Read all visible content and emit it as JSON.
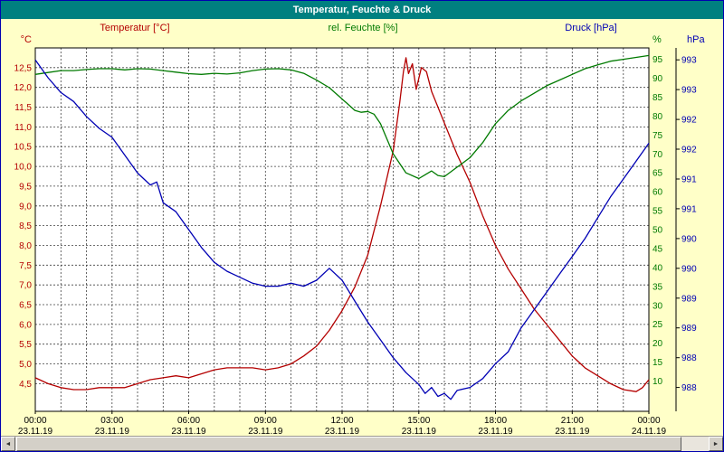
{
  "window": {
    "title": "Temperatur, Feuchte & Druck"
  },
  "scrollbar": {
    "left_arrow": "◄",
    "right_arrow": "►"
  },
  "chart_data": {
    "type": "line",
    "title": "Temperatur, Feuchte & Druck",
    "x_range": [
      0,
      24
    ],
    "grid": {
      "x_step_hours": 1,
      "vertical_on": true,
      "horizontal_on": true
    },
    "x_ticks": [
      {
        "h": 0,
        "time": "00:00",
        "date": "23.11.19"
      },
      {
        "h": 3,
        "time": "03:00",
        "date": "23.11.19"
      },
      {
        "h": 6,
        "time": "06:00",
        "date": "23.11.19"
      },
      {
        "h": 9,
        "time": "09:00",
        "date": "23.11.19"
      },
      {
        "h": 12,
        "time": "12:00",
        "date": "23.11.19"
      },
      {
        "h": 15,
        "time": "15:00",
        "date": "23.11.19"
      },
      {
        "h": 18,
        "time": "18:00",
        "date": "23.11.19"
      },
      {
        "h": 21,
        "time": "21:00",
        "date": "23.11.19"
      },
      {
        "h": 24,
        "time": "00:00",
        "date": "24.11.19"
      }
    ],
    "axes": {
      "temperature": {
        "title": "Temperatur [°C]",
        "unit": "°C",
        "color": "#b40000",
        "min": 3.8,
        "max": 13.0,
        "side": "left",
        "ticks": [
          {
            "v": 4.5,
            "label": "4,5"
          },
          {
            "v": 5.0,
            "label": "5,0"
          },
          {
            "v": 5.5,
            "label": "5,5"
          },
          {
            "v": 6.0,
            "label": "6,0"
          },
          {
            "v": 6.5,
            "label": "6,5"
          },
          {
            "v": 7.0,
            "label": "7,0"
          },
          {
            "v": 7.5,
            "label": "7,5"
          },
          {
            "v": 8.0,
            "label": "8,0"
          },
          {
            "v": 8.5,
            "label": "8,5"
          },
          {
            "v": 9.0,
            "label": "9,0"
          },
          {
            "v": 9.5,
            "label": "9,5"
          },
          {
            "v": 10.0,
            "label": "10,0"
          },
          {
            "v": 10.5,
            "label": "10,5"
          },
          {
            "v": 11.0,
            "label": "11,0"
          },
          {
            "v": 11.5,
            "label": "11,5"
          },
          {
            "v": 12.0,
            "label": "12,0"
          },
          {
            "v": 12.5,
            "label": "12,5"
          }
        ]
      },
      "humidity": {
        "title": "rel. Feuchte [%]",
        "unit": "%",
        "color": "#007a00",
        "min": 2,
        "max": 98,
        "side": "right-inner",
        "ticks": [
          {
            "v": 10,
            "label": "10"
          },
          {
            "v": 15,
            "label": "15"
          },
          {
            "v": 20,
            "label": "20"
          },
          {
            "v": 25,
            "label": "25"
          },
          {
            "v": 30,
            "label": "30"
          },
          {
            "v": 35,
            "label": "35"
          },
          {
            "v": 40,
            "label": "40"
          },
          {
            "v": 45,
            "label": "45"
          },
          {
            "v": 50,
            "label": "50"
          },
          {
            "v": 55,
            "label": "55"
          },
          {
            "v": 60,
            "label": "60"
          },
          {
            "v": 65,
            "label": "65"
          },
          {
            "v": 70,
            "label": "70"
          },
          {
            "v": 75,
            "label": "75"
          },
          {
            "v": 80,
            "label": "80"
          },
          {
            "v": 85,
            "label": "85"
          },
          {
            "v": 90,
            "label": "90"
          },
          {
            "v": 95,
            "label": "95"
          }
        ]
      },
      "pressure": {
        "title": "Druck [hPa]",
        "unit": "hPa",
        "color": "#0000b4",
        "min": 987.6,
        "max": 993.7,
        "side": "right-outer",
        "ticks": [
          {
            "v": 988.0,
            "label": "988"
          },
          {
            "v": 988.5,
            "label": "988"
          },
          {
            "v": 989.0,
            "label": "989"
          },
          {
            "v": 989.5,
            "label": "989"
          },
          {
            "v": 990.0,
            "label": "990"
          },
          {
            "v": 990.5,
            "label": "990"
          },
          {
            "v": 991.0,
            "label": "991"
          },
          {
            "v": 991.5,
            "label": "991"
          },
          {
            "v": 992.0,
            "label": "992"
          },
          {
            "v": 992.5,
            "label": "992"
          },
          {
            "v": 993.0,
            "label": "993"
          },
          {
            "v": 993.5,
            "label": "993"
          }
        ]
      }
    },
    "series": [
      {
        "name": "Temperatur",
        "unit": "°C",
        "axis": "temperature",
        "color": "#b40000",
        "points": [
          [
            0,
            4.65
          ],
          [
            0.5,
            4.5
          ],
          [
            1,
            4.4
          ],
          [
            1.5,
            4.35
          ],
          [
            2,
            4.35
          ],
          [
            2.5,
            4.4
          ],
          [
            3,
            4.4
          ],
          [
            3.5,
            4.4
          ],
          [
            4,
            4.5
          ],
          [
            4.5,
            4.6
          ],
          [
            5,
            4.65
          ],
          [
            5.5,
            4.7
          ],
          [
            6,
            4.65
          ],
          [
            6.5,
            4.75
          ],
          [
            7,
            4.85
          ],
          [
            7.5,
            4.9
          ],
          [
            8,
            4.9
          ],
          [
            8.5,
            4.9
          ],
          [
            9,
            4.85
          ],
          [
            9.5,
            4.9
          ],
          [
            10,
            5.0
          ],
          [
            10.5,
            5.2
          ],
          [
            11,
            5.45
          ],
          [
            11.5,
            5.85
          ],
          [
            12,
            6.35
          ],
          [
            12.5,
            6.95
          ],
          [
            13,
            7.75
          ],
          [
            13.5,
            9.0
          ],
          [
            14,
            10.4
          ],
          [
            14.25,
            11.6
          ],
          [
            14.4,
            12.4
          ],
          [
            14.5,
            12.75
          ],
          [
            14.6,
            12.35
          ],
          [
            14.75,
            12.6
          ],
          [
            14.9,
            11.95
          ],
          [
            15.1,
            12.5
          ],
          [
            15.3,
            12.4
          ],
          [
            15.5,
            11.9
          ],
          [
            16,
            11.1
          ],
          [
            16.5,
            10.3
          ],
          [
            17,
            9.6
          ],
          [
            17.5,
            8.75
          ],
          [
            18,
            8.0
          ],
          [
            18.5,
            7.4
          ],
          [
            19,
            6.9
          ],
          [
            19.5,
            6.4
          ],
          [
            20,
            6.0
          ],
          [
            20.5,
            5.6
          ],
          [
            21,
            5.2
          ],
          [
            21.5,
            4.9
          ],
          [
            22,
            4.7
          ],
          [
            22.5,
            4.5
          ],
          [
            23,
            4.35
          ],
          [
            23.5,
            4.3
          ],
          [
            23.75,
            4.4
          ],
          [
            24,
            4.6
          ]
        ]
      },
      {
        "name": "rel. Feuchte",
        "unit": "%",
        "axis": "humidity",
        "color": "#007a00",
        "points": [
          [
            0,
            91
          ],
          [
            0.5,
            91.5
          ],
          [
            1,
            92
          ],
          [
            1.5,
            92
          ],
          [
            2,
            92.3
          ],
          [
            2.5,
            92.5
          ],
          [
            3,
            92.5
          ],
          [
            3.5,
            92.2
          ],
          [
            4,
            92.5
          ],
          [
            4.5,
            92.4
          ],
          [
            5,
            92
          ],
          [
            5.5,
            91.6
          ],
          [
            6,
            91.2
          ],
          [
            6.5,
            91
          ],
          [
            7,
            91.3
          ],
          [
            7.5,
            91.1
          ],
          [
            8,
            91.4
          ],
          [
            8.5,
            92
          ],
          [
            9,
            92.4
          ],
          [
            9.5,
            92.5
          ],
          [
            10,
            92.2
          ],
          [
            10.5,
            91.3
          ],
          [
            11,
            89.5
          ],
          [
            11.5,
            87.5
          ],
          [
            12,
            84.5
          ],
          [
            12.5,
            81.5
          ],
          [
            12.75,
            81
          ],
          [
            13,
            81.2
          ],
          [
            13.25,
            80.5
          ],
          [
            13.5,
            78
          ],
          [
            14,
            70
          ],
          [
            14.5,
            65
          ],
          [
            15,
            63.5
          ],
          [
            15.25,
            64.5
          ],
          [
            15.5,
            65.5
          ],
          [
            15.75,
            64.3
          ],
          [
            16,
            64
          ],
          [
            16.5,
            66.5
          ],
          [
            17,
            69
          ],
          [
            17.5,
            73
          ],
          [
            18,
            78
          ],
          [
            18.5,
            81.5
          ],
          [
            19,
            84
          ],
          [
            19.5,
            86
          ],
          [
            20,
            88
          ],
          [
            20.5,
            89.5
          ],
          [
            21,
            91
          ],
          [
            21.5,
            92.5
          ],
          [
            22,
            93.5
          ],
          [
            22.5,
            94.5
          ],
          [
            23,
            95
          ],
          [
            23.5,
            95.5
          ],
          [
            24,
            96
          ]
        ]
      },
      {
        "name": "Druck",
        "unit": "hPa",
        "axis": "pressure",
        "color": "#0000b4",
        "points": [
          [
            0,
            993.5
          ],
          [
            0.5,
            993.2
          ],
          [
            1,
            992.95
          ],
          [
            1.5,
            992.8
          ],
          [
            2,
            992.55
          ],
          [
            2.5,
            992.35
          ],
          [
            3,
            992.2
          ],
          [
            3.5,
            991.9
          ],
          [
            4,
            991.6
          ],
          [
            4.5,
            991.4
          ],
          [
            4.75,
            991.45
          ],
          [
            5,
            991.1
          ],
          [
            5.5,
            990.95
          ],
          [
            6,
            990.65
          ],
          [
            6.5,
            990.35
          ],
          [
            7,
            990.1
          ],
          [
            7.5,
            989.95
          ],
          [
            8,
            989.85
          ],
          [
            8.5,
            989.75
          ],
          [
            9,
            989.7
          ],
          [
            9.5,
            989.7
          ],
          [
            10,
            989.75
          ],
          [
            10.5,
            989.7
          ],
          [
            11,
            989.8
          ],
          [
            11.5,
            990.0
          ],
          [
            12,
            989.8
          ],
          [
            12.5,
            989.45
          ],
          [
            13,
            989.1
          ],
          [
            13.5,
            988.8
          ],
          [
            14,
            988.5
          ],
          [
            14.5,
            988.25
          ],
          [
            15,
            988.05
          ],
          [
            15.25,
            987.9
          ],
          [
            15.5,
            988.0
          ],
          [
            15.75,
            987.85
          ],
          [
            16,
            987.9
          ],
          [
            16.25,
            987.8
          ],
          [
            16.5,
            987.95
          ],
          [
            17,
            988.0
          ],
          [
            17.5,
            988.15
          ],
          [
            18,
            988.4
          ],
          [
            18.5,
            988.6
          ],
          [
            19,
            989.0
          ],
          [
            19.5,
            989.3
          ],
          [
            20,
            989.6
          ],
          [
            20.5,
            989.9
          ],
          [
            21,
            990.2
          ],
          [
            21.5,
            990.5
          ],
          [
            22,
            990.85
          ],
          [
            22.5,
            991.2
          ],
          [
            23,
            991.5
          ],
          [
            23.5,
            991.8
          ],
          [
            24,
            992.1
          ]
        ]
      }
    ]
  }
}
